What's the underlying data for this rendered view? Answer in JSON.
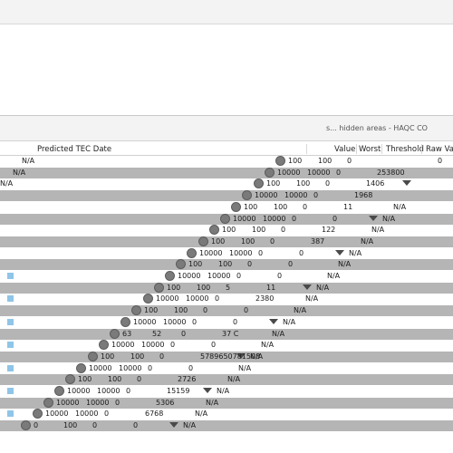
{
  "toolbar": {
    "status_label": "s... hidden areas - HAQC CO"
  },
  "table": {
    "columns": [
      "Predicted TEC Date",
      "Value",
      "Worst",
      "Threshold",
      "Raw Valu"
    ],
    "rows": [
      {
        "a": "N/A",
        "b": "",
        "c": "100",
        "d": "100",
        "e": "0",
        "f": "",
        "g": "0"
      },
      {
        "a": "N/A",
        "b": "",
        "c": "10000",
        "d": "10000",
        "e": "0",
        "f": "253800",
        "g": ""
      },
      {
        "a": "N/A",
        "b": "",
        "c": "100",
        "d": "100",
        "e": "0",
        "f": "1406",
        "g": ""
      },
      {
        "a": "",
        "b": "",
        "c": "10000",
        "d": "10000",
        "e": "0",
        "f": "1968",
        "g": ""
      },
      {
        "a": "",
        "b": "",
        "c": "100",
        "d": "100",
        "e": "0",
        "f": "11",
        "g": "N/A"
      },
      {
        "a": "",
        "b": "",
        "c": "10000",
        "d": "10000",
        "e": "0",
        "f": "0",
        "g": "N/A"
      },
      {
        "a": "",
        "b": "",
        "c": "100",
        "d": "100",
        "e": "0",
        "f": "122",
        "g": "N/A"
      },
      {
        "a": "",
        "b": "",
        "c": "100",
        "d": "100",
        "e": "0",
        "f": "387",
        "g": "N/A"
      },
      {
        "a": "",
        "b": "",
        "c": "10000",
        "d": "10000",
        "e": "0",
        "f": "0",
        "g": "N/A"
      },
      {
        "a": "",
        "b": "",
        "c": "100",
        "d": "100",
        "e": "0",
        "f": "0",
        "g": "N/A"
      },
      {
        "a": "",
        "b": "",
        "c": "10000",
        "d": "10000",
        "e": "0",
        "f": "0",
        "g": "N/A"
      },
      {
        "a": "",
        "b": "",
        "c": "100",
        "d": "100",
        "e": "5",
        "f": "11",
        "g": "N/A"
      },
      {
        "a": "",
        "b": "",
        "c": "10000",
        "d": "10000",
        "e": "0",
        "f": "2380",
        "g": "N/A"
      },
      {
        "a": "",
        "b": "",
        "c": "100",
        "d": "100",
        "e": "0",
        "f": "0",
        "g": "N/A"
      },
      {
        "a": "",
        "b": "",
        "c": "10000",
        "d": "10000",
        "e": "0",
        "f": "0",
        "g": "N/A"
      },
      {
        "a": "",
        "b": "",
        "c": "63",
        "d": "52",
        "e": "0",
        "f": "37 C",
        "g": "N/A"
      },
      {
        "a": "",
        "b": "",
        "c": "10000",
        "d": "10000",
        "e": "0",
        "f": "0",
        "g": "N/A"
      },
      {
        "a": "",
        "b": "",
        "c": "100",
        "d": "100",
        "e": "0",
        "f": "5789650781508",
        "g": "N/A"
      },
      {
        "a": "",
        "b": "",
        "c": "10000",
        "d": "10000",
        "e": "0",
        "f": "0",
        "g": "N/A"
      },
      {
        "a": "",
        "b": "",
        "c": "100",
        "d": "100",
        "e": "0",
        "f": "2726",
        "g": "N/A"
      },
      {
        "a": "",
        "b": "",
        "c": "10000",
        "d": "10000",
        "e": "0",
        "f": "15159",
        "g": "N/A"
      },
      {
        "a": "",
        "b": "",
        "c": "10000",
        "d": "10000",
        "e": "0",
        "f": "5306",
        "g": "N/A"
      },
      {
        "a": "",
        "b": "",
        "c": "10000",
        "d": "10000",
        "e": "0",
        "f": "6768",
        "g": "N/A"
      },
      {
        "a": "",
        "b": "",
        "c": "0",
        "d": "100",
        "e": "0",
        "f": "0",
        "g": "N/A"
      }
    ]
  },
  "colors": {
    "band": "#b5b5b5",
    "highlight": "#8fc5e8"
  }
}
